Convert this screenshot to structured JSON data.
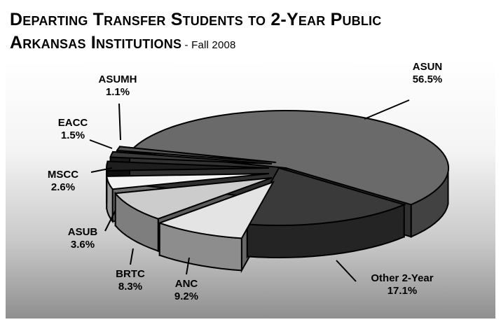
{
  "chart_data": {
    "type": "pie",
    "title_line1": "Departing Transfer Students to 2-Year Public",
    "title_line2": "Arkansas Institutions",
    "title_sep": " - ",
    "subtitle": "Fall 2008",
    "slices": [
      {
        "label": "ASUN",
        "value": 56.5,
        "value_text": "56.5%"
      },
      {
        "label": "Other 2-Year",
        "value": 17.1,
        "value_text": "17.1%"
      },
      {
        "label": "ANC",
        "value": 9.2,
        "value_text": "9.2%"
      },
      {
        "label": "BRTC",
        "value": 8.3,
        "value_text": "8.3%"
      },
      {
        "label": "ASUB",
        "value": 3.6,
        "value_text": "3.6%"
      },
      {
        "label": "MSCC",
        "value": 2.6,
        "value_text": "2.6%"
      },
      {
        "label": "EACC",
        "value": 1.5,
        "value_text": "1.5%"
      },
      {
        "label": "ASUMH",
        "value": 1.1,
        "value_text": "1.1%"
      }
    ],
    "colors": [
      "#6a6a6a",
      "#3a3a3a",
      "#e4e4e4",
      "#cccccc",
      "#f4f4f4",
      "#1e1e1e",
      "#3a3a3a",
      "#555555"
    ]
  }
}
